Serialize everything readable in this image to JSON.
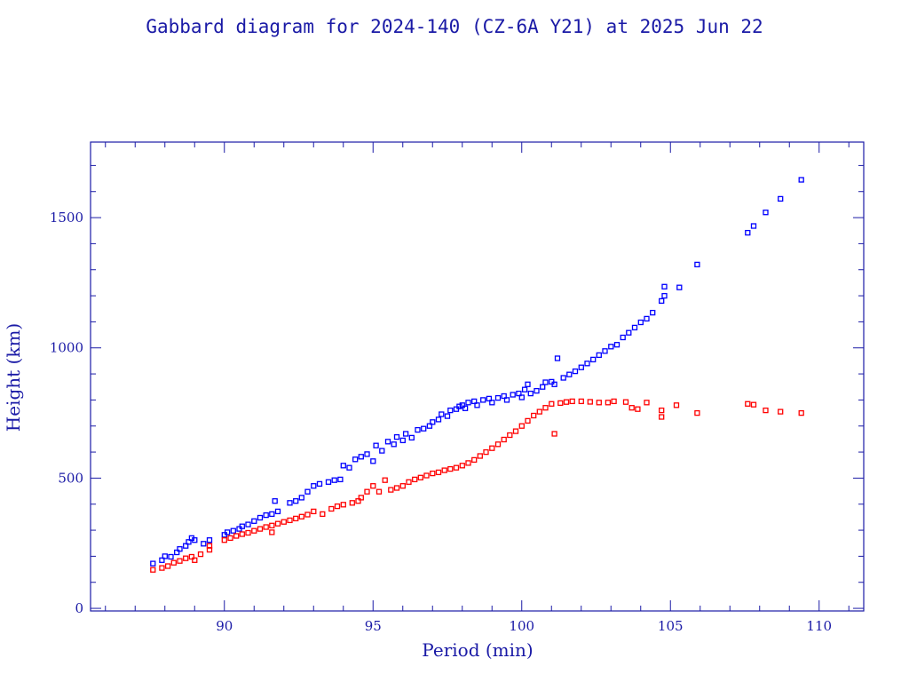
{
  "chart_data": {
    "type": "scatter",
    "title": "Gabbard diagram for 2024-140 (CZ-6A Y21) at 2025 Jun 22",
    "xlabel": "Period (min)",
    "ylabel": "Height (km)",
    "xlim": [
      85.5,
      111.5
    ],
    "ylim": [
      -10,
      1790
    ],
    "xticks": [
      90,
      95,
      100,
      105,
      110
    ],
    "yticks": [
      0,
      500,
      1000,
      1500
    ],
    "grid": false,
    "marker": "open-square",
    "series": [
      {
        "color": "#0000ff",
        "points": [
          [
            87.6,
            172
          ],
          [
            87.9,
            185
          ],
          [
            88.0,
            200
          ],
          [
            88.2,
            198
          ],
          [
            88.4,
            215
          ],
          [
            88.5,
            228
          ],
          [
            88.7,
            240
          ],
          [
            88.8,
            255
          ],
          [
            88.9,
            270
          ],
          [
            89.0,
            262
          ],
          [
            89.3,
            248
          ],
          [
            89.5,
            262
          ],
          [
            90.0,
            282
          ],
          [
            90.1,
            292
          ],
          [
            90.3,
            298
          ],
          [
            90.5,
            305
          ],
          [
            90.6,
            315
          ],
          [
            90.8,
            322
          ],
          [
            91.0,
            335
          ],
          [
            91.2,
            348
          ],
          [
            91.4,
            358
          ],
          [
            91.6,
            362
          ],
          [
            91.8,
            372
          ],
          [
            91.7,
            412
          ],
          [
            92.2,
            405
          ],
          [
            92.4,
            412
          ],
          [
            92.6,
            425
          ],
          [
            92.8,
            448
          ],
          [
            93.0,
            470
          ],
          [
            93.2,
            478
          ],
          [
            93.5,
            485
          ],
          [
            93.7,
            492
          ],
          [
            93.9,
            495
          ],
          [
            94.0,
            548
          ],
          [
            94.2,
            540
          ],
          [
            94.4,
            572
          ],
          [
            94.6,
            582
          ],
          [
            94.8,
            592
          ],
          [
            95.0,
            565
          ],
          [
            95.1,
            625
          ],
          [
            95.3,
            605
          ],
          [
            95.5,
            640
          ],
          [
            95.7,
            630
          ],
          [
            95.8,
            658
          ],
          [
            96.0,
            645
          ],
          [
            96.1,
            670
          ],
          [
            96.3,
            655
          ],
          [
            96.5,
            685
          ],
          [
            96.7,
            690
          ],
          [
            96.9,
            700
          ],
          [
            97.0,
            715
          ],
          [
            97.2,
            725
          ],
          [
            97.3,
            745
          ],
          [
            97.5,
            738
          ],
          [
            97.6,
            760
          ],
          [
            97.8,
            765
          ],
          [
            97.9,
            775
          ],
          [
            98.0,
            780
          ],
          [
            98.1,
            768
          ],
          [
            98.2,
            790
          ],
          [
            98.4,
            795
          ],
          [
            98.5,
            780
          ],
          [
            98.7,
            800
          ],
          [
            98.9,
            805
          ],
          [
            99.0,
            790
          ],
          [
            99.2,
            808
          ],
          [
            99.4,
            815
          ],
          [
            99.5,
            800
          ],
          [
            99.7,
            820
          ],
          [
            99.9,
            825
          ],
          [
            100.0,
            810
          ],
          [
            100.1,
            840
          ],
          [
            100.2,
            860
          ],
          [
            100.3,
            825
          ],
          [
            100.5,
            835
          ],
          [
            100.7,
            850
          ],
          [
            100.8,
            868
          ],
          [
            101.0,
            870
          ],
          [
            101.1,
            860
          ],
          [
            101.2,
            960
          ],
          [
            101.4,
            885
          ],
          [
            101.6,
            898
          ],
          [
            101.8,
            910
          ],
          [
            102.0,
            925
          ],
          [
            102.2,
            940
          ],
          [
            102.4,
            955
          ],
          [
            102.6,
            972
          ],
          [
            102.8,
            988
          ],
          [
            103.0,
            1005
          ],
          [
            103.2,
            1012
          ],
          [
            103.4,
            1040
          ],
          [
            103.6,
            1058
          ],
          [
            103.8,
            1078
          ],
          [
            104.0,
            1098
          ],
          [
            104.2,
            1112
          ],
          [
            104.4,
            1135
          ],
          [
            104.7,
            1180
          ],
          [
            104.8,
            1200
          ],
          [
            104.8,
            1235
          ],
          [
            105.3,
            1232
          ],
          [
            105.9,
            1320
          ],
          [
            107.6,
            1442
          ],
          [
            107.8,
            1468
          ],
          [
            108.2,
            1520
          ],
          [
            108.7,
            1572
          ],
          [
            109.4,
            1645
          ]
        ]
      },
      {
        "color": "#ff0000",
        "points": [
          [
            87.6,
            148
          ],
          [
            87.9,
            155
          ],
          [
            88.1,
            162
          ],
          [
            88.3,
            175
          ],
          [
            88.5,
            182
          ],
          [
            88.7,
            192
          ],
          [
            88.9,
            198
          ],
          [
            89.0,
            185
          ],
          [
            89.2,
            208
          ],
          [
            89.5,
            225
          ],
          [
            89.5,
            240
          ],
          [
            90.0,
            262
          ],
          [
            90.2,
            270
          ],
          [
            90.4,
            278
          ],
          [
            90.6,
            285
          ],
          [
            90.8,
            290
          ],
          [
            91.0,
            298
          ],
          [
            91.2,
            305
          ],
          [
            91.4,
            312
          ],
          [
            91.6,
            318
          ],
          [
            91.6,
            292
          ],
          [
            91.8,
            325
          ],
          [
            92.0,
            332
          ],
          [
            92.2,
            338
          ],
          [
            92.4,
            345
          ],
          [
            92.6,
            352
          ],
          [
            92.8,
            360
          ],
          [
            93.0,
            372
          ],
          [
            93.3,
            362
          ],
          [
            93.6,
            382
          ],
          [
            93.8,
            392
          ],
          [
            94.0,
            398
          ],
          [
            94.3,
            405
          ],
          [
            94.5,
            412
          ],
          [
            94.6,
            425
          ],
          [
            94.8,
            448
          ],
          [
            95.0,
            470
          ],
          [
            95.2,
            448
          ],
          [
            95.4,
            492
          ],
          [
            95.6,
            455
          ],
          [
            95.8,
            462
          ],
          [
            96.0,
            470
          ],
          [
            96.2,
            485
          ],
          [
            96.4,
            495
          ],
          [
            96.6,
            502
          ],
          [
            96.8,
            510
          ],
          [
            97.0,
            518
          ],
          [
            97.2,
            522
          ],
          [
            97.4,
            530
          ],
          [
            97.6,
            535
          ],
          [
            97.8,
            540
          ],
          [
            98.0,
            548
          ],
          [
            98.2,
            558
          ],
          [
            98.4,
            570
          ],
          [
            98.6,
            585
          ],
          [
            98.8,
            600
          ],
          [
            99.0,
            615
          ],
          [
            99.2,
            630
          ],
          [
            99.4,
            648
          ],
          [
            99.6,
            665
          ],
          [
            99.8,
            680
          ],
          [
            100.0,
            700
          ],
          [
            100.2,
            720
          ],
          [
            100.4,
            740
          ],
          [
            100.6,
            755
          ],
          [
            100.8,
            770
          ],
          [
            101.0,
            785
          ],
          [
            101.1,
            670
          ],
          [
            101.3,
            788
          ],
          [
            101.5,
            792
          ],
          [
            101.7,
            795
          ],
          [
            102.0,
            795
          ],
          [
            102.3,
            793
          ],
          [
            102.6,
            790
          ],
          [
            102.9,
            790
          ],
          [
            103.1,
            795
          ],
          [
            103.5,
            792
          ],
          [
            103.7,
            770
          ],
          [
            103.9,
            765
          ],
          [
            104.2,
            790
          ],
          [
            104.7,
            760
          ],
          [
            104.7,
            735
          ],
          [
            105.2,
            780
          ],
          [
            105.9,
            750
          ],
          [
            107.6,
            785
          ],
          [
            107.8,
            782
          ],
          [
            108.2,
            760
          ],
          [
            108.7,
            755
          ],
          [
            109.4,
            750
          ]
        ]
      }
    ]
  }
}
